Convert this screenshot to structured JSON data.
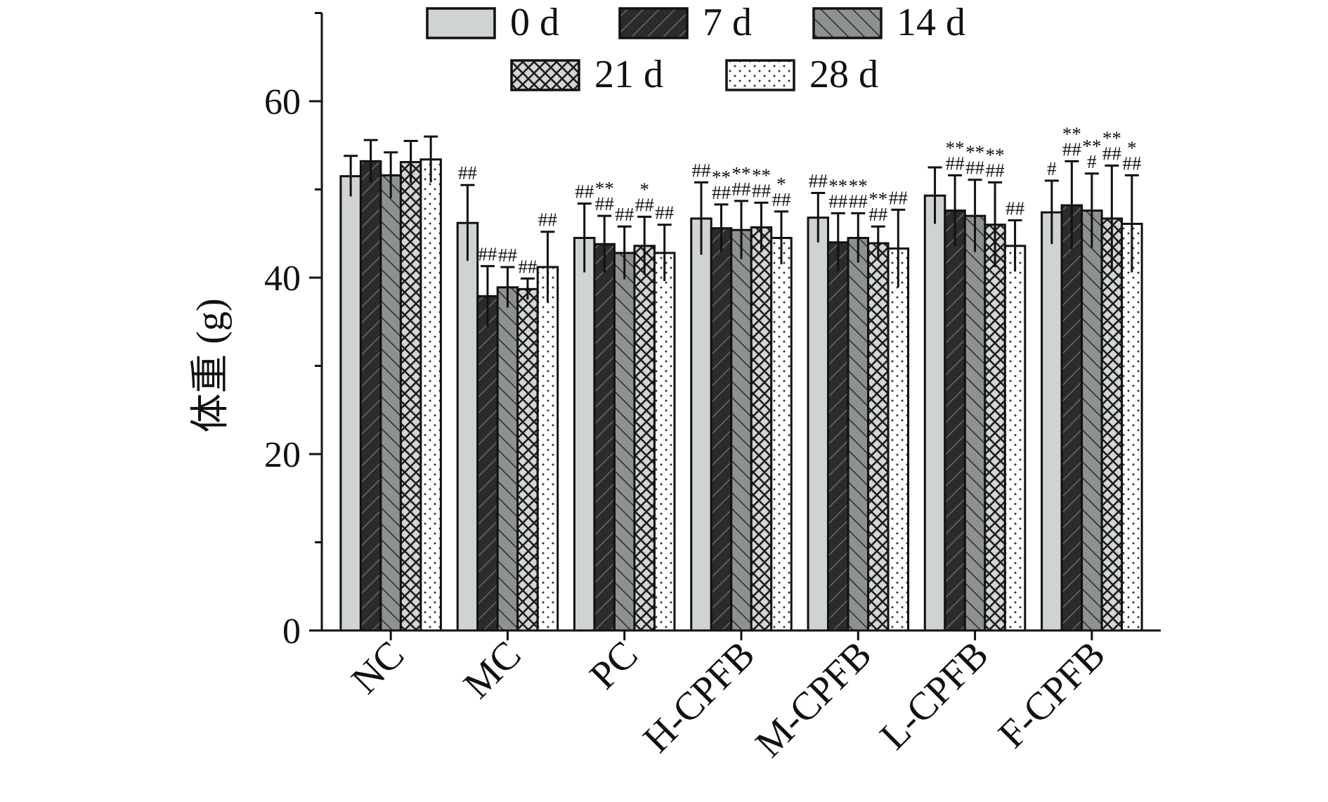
{
  "chart_data": {
    "type": "bar",
    "title": "",
    "xlabel": "",
    "ylabel": "体重 (g)",
    "ylim": [
      0,
      70
    ],
    "yticks": [
      0,
      20,
      40,
      60
    ],
    "legend_position": "top",
    "grid": false,
    "categories": [
      "NC",
      "MC",
      "PC",
      "H-CPFB",
      "M-CPFB",
      "L-CPFB",
      "F-CPFB"
    ],
    "series": [
      {
        "name": "0 d",
        "pattern": "solid-light-gray",
        "color": "#d0d3d3",
        "values": [
          51.5,
          46.2,
          44.5,
          46.7,
          46.8,
          49.3,
          47.4
        ],
        "errors": [
          2.3,
          4.3,
          3.9,
          4.1,
          2.8,
          3.2,
          3.6
        ],
        "annotations": [
          "",
          "##",
          "##",
          "##",
          "##",
          "",
          "#"
        ]
      },
      {
        "name": "7 d",
        "pattern": "dark-diagonal",
        "color": "#2b2b2b",
        "values": [
          53.2,
          37.9,
          43.8,
          45.6,
          44.0,
          47.6,
          48.2
        ],
        "errors": [
          2.4,
          3.4,
          3.2,
          2.7,
          3.3,
          4.0,
          5.0
        ],
        "annotations": [
          "",
          "##",
          "**\n##",
          "**\n##",
          "**\n##",
          "**\n##",
          "**\n##"
        ]
      },
      {
        "name": "14 d",
        "pattern": "gray-backdiagonal",
        "color": "#8e9191",
        "values": [
          51.6,
          38.9,
          42.8,
          45.4,
          44.5,
          47.0,
          47.6
        ],
        "errors": [
          2.6,
          2.3,
          3.0,
          3.3,
          2.8,
          4.1,
          4.2
        ],
        "annotations": [
          "",
          "##",
          "##",
          "**\n##",
          "**\n##",
          "**\n##",
          "**\n#"
        ]
      },
      {
        "name": "21 d",
        "pattern": "crosshatch",
        "color": "#c8cbcb",
        "values": [
          53.1,
          38.7,
          43.6,
          45.7,
          43.9,
          46.0,
          46.7
        ],
        "errors": [
          2.4,
          1.2,
          3.3,
          2.8,
          1.9,
          4.8,
          6.0
        ],
        "annotations": [
          "",
          "##",
          "*\n##",
          "**\n##",
          "**\n##",
          "**\n##",
          "**\n##"
        ]
      },
      {
        "name": "28 d",
        "pattern": "dotted",
        "color": "#ffffff",
        "values": [
          53.4,
          41.2,
          42.8,
          44.5,
          43.3,
          43.6,
          46.1
        ],
        "errors": [
          2.6,
          4.0,
          3.2,
          3.0,
          4.4,
          2.9,
          5.5
        ],
        "annotations": [
          "",
          "##",
          "##",
          "*\n##",
          "##",
          "##",
          "*\n##"
        ]
      }
    ]
  }
}
